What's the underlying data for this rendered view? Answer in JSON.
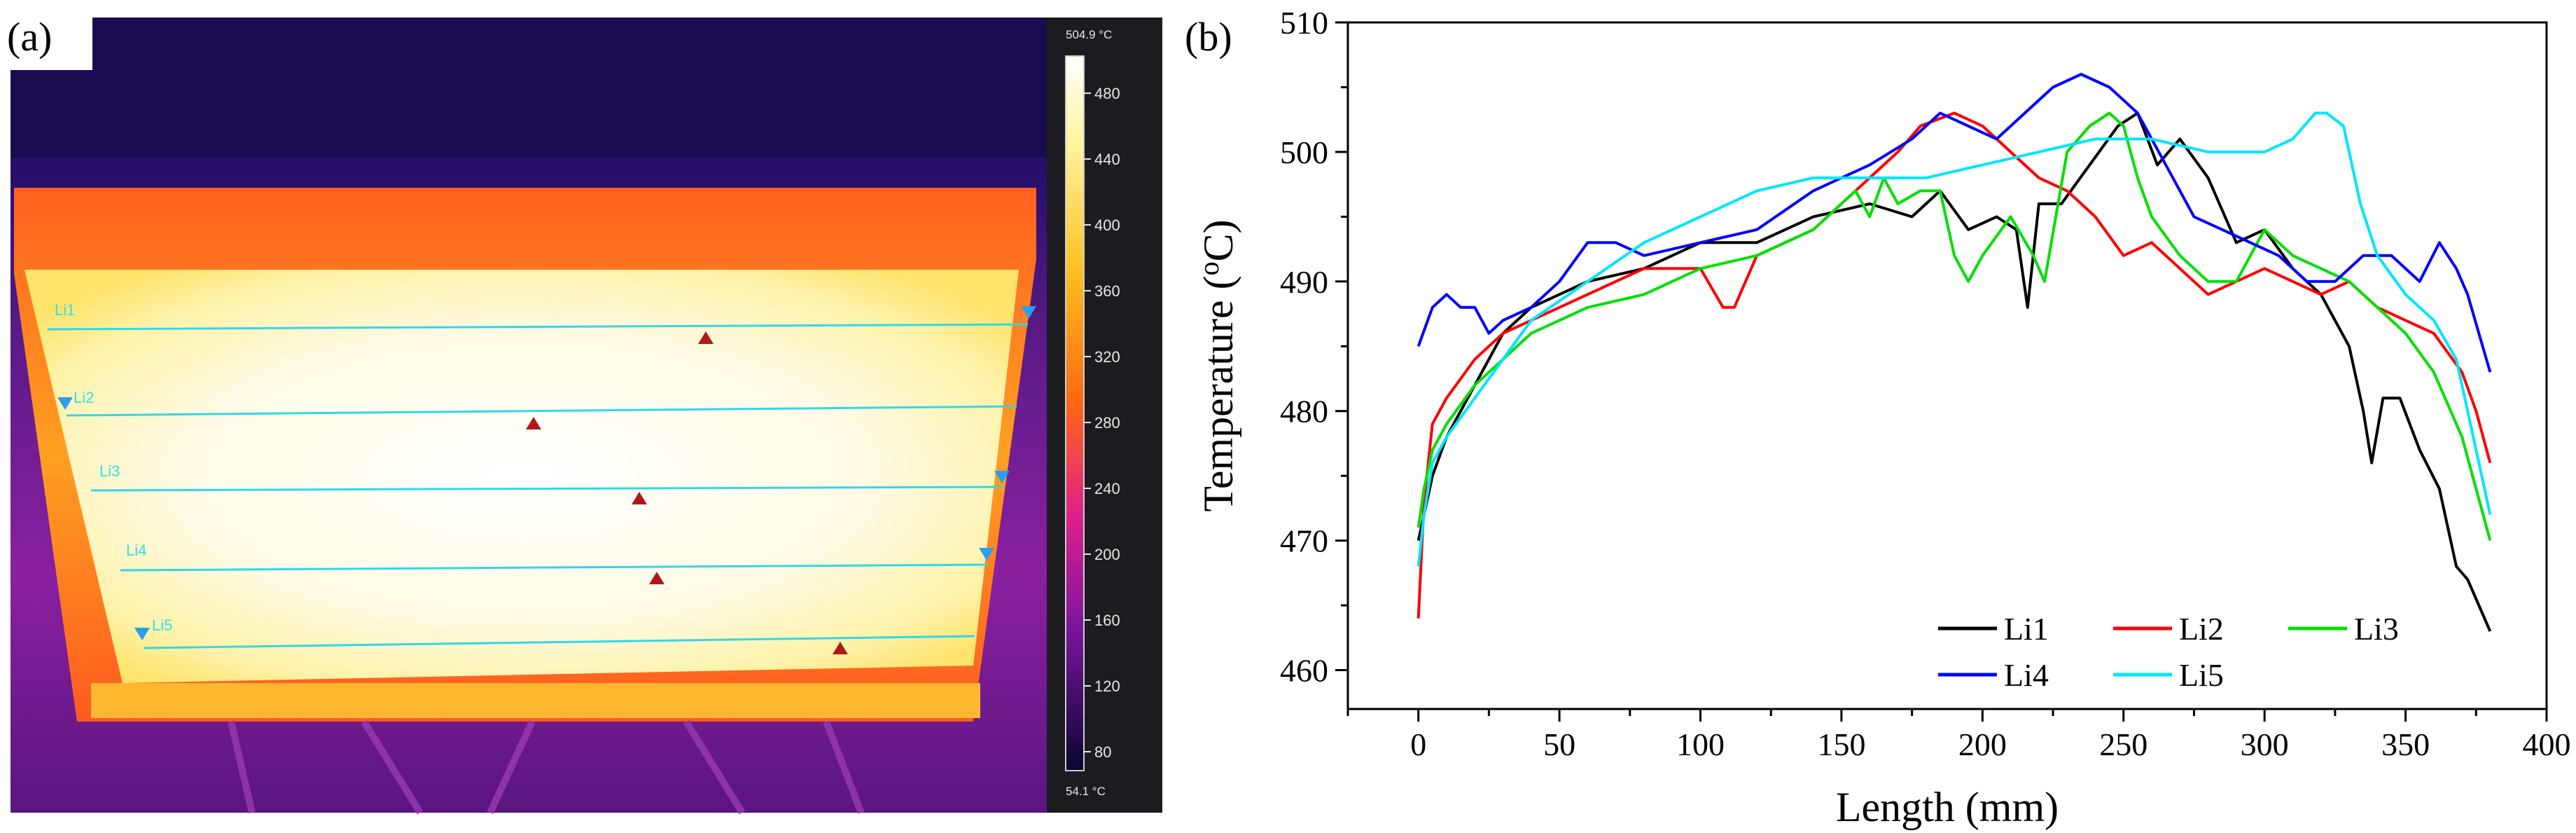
{
  "panels": {
    "a": {
      "label": "(a)"
    },
    "b": {
      "label": "(b)"
    }
  },
  "thermal": {
    "scale_max": "504.9 °C",
    "scale_min": "54.1 °C",
    "scale_ticks": [
      "480",
      "440",
      "400",
      "360",
      "320",
      "280",
      "240",
      "200",
      "160",
      "120",
      "80"
    ],
    "line_labels": [
      "Li1",
      "Li2",
      "Li3",
      "Li4",
      "Li5"
    ],
    "colors": {
      "line": "#2fd8e8",
      "hot_marker": "#b01818",
      "end_marker": "#2a9ef0"
    }
  },
  "chart_data": {
    "type": "line",
    "xlabel": "Length (mm)",
    "ylabel": "Temperature (oC)",
    "xlim": [
      -25,
      400
    ],
    "ylim": [
      457,
      510
    ],
    "xticks": [
      0,
      50,
      100,
      150,
      200,
      250,
      300,
      350,
      400
    ],
    "yticks": [
      460,
      470,
      480,
      490,
      500,
      510
    ],
    "grid": false,
    "legend_position": "bottom-right",
    "series": [
      {
        "name": "Li1",
        "color": "#000000",
        "x": [
          0,
          2,
          5,
          10,
          20,
          30,
          40,
          60,
          80,
          100,
          120,
          140,
          160,
          175,
          185,
          195,
          205,
          212,
          216,
          220,
          228,
          238,
          248,
          255,
          262,
          270,
          280,
          290,
          300,
          310,
          320,
          330,
          335,
          338,
          342,
          348,
          355,
          362,
          368,
          372,
          376,
          380
        ],
        "y": [
          470,
          472,
          475,
          478,
          482,
          486,
          488,
          490,
          491,
          493,
          493,
          495,
          496,
          495,
          497,
          494,
          495,
          494,
          488,
          496,
          496,
          499,
          502,
          503,
          499,
          501,
          498,
          493,
          494,
          491,
          489,
          485,
          480,
          476,
          481,
          481,
          477,
          474,
          468,
          467,
          465,
          463
        ]
      },
      {
        "name": "Li2",
        "color": "#ff0000",
        "x": [
          0,
          2,
          5,
          10,
          20,
          30,
          40,
          60,
          80,
          100,
          108,
          112,
          120,
          140,
          160,
          170,
          178,
          190,
          200,
          210,
          220,
          230,
          240,
          250,
          260,
          270,
          280,
          290,
          300,
          310,
          320,
          330,
          340,
          350,
          360,
          370,
          375,
          380
        ],
        "y": [
          464,
          473,
          479,
          481,
          484,
          486,
          487,
          489,
          491,
          491,
          488,
          488,
          492,
          494,
          498,
          500,
          502,
          503,
          502,
          500,
          498,
          497,
          495,
          492,
          493,
          491,
          489,
          490,
          491,
          490,
          489,
          490,
          488,
          487,
          486,
          483,
          480,
          476
        ]
      },
      {
        "name": "Li3",
        "color": "#00e000",
        "x": [
          0,
          2,
          5,
          10,
          20,
          30,
          40,
          60,
          80,
          100,
          120,
          140,
          155,
          160,
          165,
          170,
          178,
          185,
          190,
          195,
          200,
          210,
          218,
          222,
          230,
          238,
          245,
          250,
          255,
          260,
          270,
          280,
          290,
          300,
          310,
          320,
          330,
          340,
          350,
          360,
          370,
          375,
          380
        ],
        "y": [
          471,
          474,
          477,
          479,
          482,
          484,
          486,
          488,
          489,
          491,
          492,
          494,
          497,
          495,
          498,
          496,
          497,
          497,
          492,
          490,
          492,
          495,
          492,
          490,
          500,
          502,
          503,
          502,
          498,
          495,
          492,
          490,
          490,
          494,
          492,
          491,
          490,
          488,
          486,
          483,
          478,
          474,
          470
        ]
      },
      {
        "name": "Li4",
        "color": "#0000ff",
        "x": [
          0,
          5,
          10,
          15,
          20,
          25,
          30,
          40,
          50,
          60,
          70,
          80,
          100,
          120,
          140,
          160,
          175,
          185,
          195,
          205,
          215,
          225,
          235,
          245,
          255,
          265,
          275,
          285,
          295,
          305,
          315,
          325,
          335,
          345,
          355,
          362,
          368,
          372,
          376,
          380
        ],
        "y": [
          485,
          488,
          489,
          488,
          488,
          486,
          487,
          488,
          490,
          493,
          493,
          492,
          493,
          494,
          497,
          499,
          501,
          503,
          502,
          501,
          503,
          505,
          506,
          505,
          503,
          499,
          495,
          494,
          493,
          492,
          490,
          490,
          492,
          492,
          490,
          493,
          491,
          489,
          486,
          483
        ]
      },
      {
        "name": "Li5",
        "color": "#00e5ff",
        "x": [
          0,
          2,
          5,
          10,
          20,
          30,
          40,
          60,
          80,
          100,
          120,
          140,
          160,
          180,
          200,
          220,
          240,
          260,
          280,
          300,
          310,
          318,
          322,
          328,
          334,
          340,
          350,
          360,
          368,
          374,
          380
        ],
        "y": [
          468,
          472,
          476,
          478,
          481,
          484,
          487,
          490,
          493,
          495,
          497,
          498,
          498,
          498,
          499,
          500,
          501,
          501,
          500,
          500,
          501,
          503,
          503,
          502,
          496,
          492,
          489,
          487,
          484,
          478,
          472
        ]
      }
    ]
  }
}
